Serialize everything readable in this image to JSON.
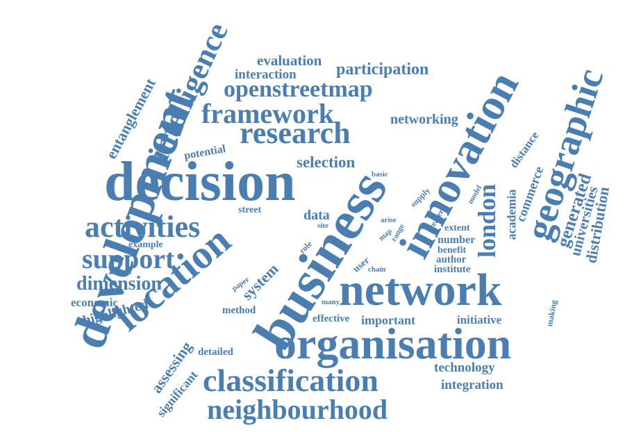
{
  "theme": {
    "text_color": "#4a7eb1",
    "background": "#ffffff"
  },
  "words": [
    "development",
    "intelligence",
    "entanglement",
    "decision",
    "business",
    "innovation",
    "geographic",
    "network",
    "location",
    "organisation",
    "classification",
    "neighbourhood",
    "openstreetmap",
    "research",
    "framework",
    "activities",
    "support",
    "dimension",
    "evaluation",
    "interaction",
    "participation",
    "networking",
    "selection",
    "potential",
    "london",
    "academia",
    "commerce",
    "generated",
    "universities",
    "distribution",
    "distance",
    "street",
    "data",
    "system",
    "example",
    "economic",
    "highlighted",
    "assessing",
    "significant",
    "detailed",
    "method",
    "paper",
    "role",
    "site",
    "many",
    "user",
    "chain",
    "arise",
    "map",
    "range",
    "basic",
    "supply",
    "greater",
    "model",
    "extent",
    "number",
    "benefit",
    "author",
    "institute",
    "effective",
    "important",
    "initiative",
    "making",
    "technology",
    "integration"
  ]
}
